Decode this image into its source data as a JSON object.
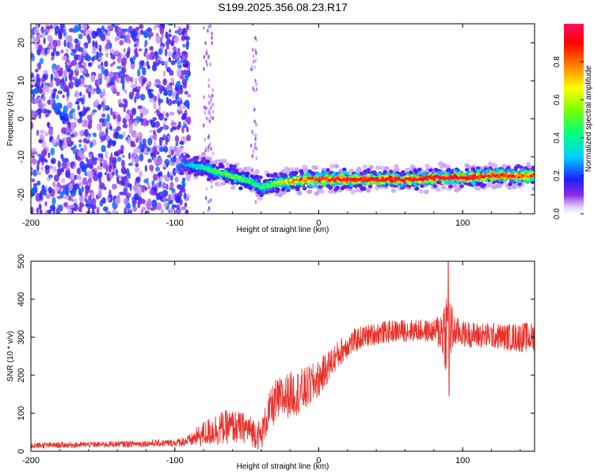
{
  "title": "S199.2025.356.08.23.R17",
  "colors": {
    "snr_line": "#e8302a",
    "scatter_low": "#7b00ff",
    "signal_core": "#ff2200",
    "frame": "#000000"
  },
  "chart_data": [
    {
      "type": "heatmap",
      "name": "spectrogram",
      "xlabel": "Height of straight line (km)",
      "ylabel": "Frequency (Hz)",
      "xlim": [
        -200,
        150
      ],
      "ylim": [
        -25,
        25
      ],
      "xticks": [
        -200,
        -100,
        0,
        100
      ],
      "xtick_labels": [
        "-200",
        "-100",
        "0",
        "100"
      ],
      "yticks": [
        -20,
        -10,
        0,
        10,
        20
      ],
      "ytick_labels": [
        "-20",
        "-10",
        "0",
        "10",
        "20"
      ],
      "colorbar": {
        "label": "Normalized spectral amplitude",
        "range": [
          0,
          1
        ],
        "ticks": [
          0.0,
          0.2,
          0.4,
          0.6,
          0.8
        ],
        "tick_labels": [
          "0.0",
          "0.2",
          "0.4",
          "0.6",
          "0.8"
        ]
      },
      "noise_region": {
        "x_from": -200,
        "x_to": -90,
        "y_from": -25,
        "y_to": 25,
        "amplitude_range": [
          0.05,
          0.25
        ]
      },
      "sparse_columns_x": [
        -78,
        -75,
        -45
      ],
      "signal_track": [
        {
          "x": -95,
          "y": -12,
          "amp": 0.25
        },
        {
          "x": -85,
          "y": -12.5,
          "amp": 0.35
        },
        {
          "x": -75,
          "y": -13.5,
          "amp": 0.45
        },
        {
          "x": -65,
          "y": -14.5,
          "amp": 0.5
        },
        {
          "x": -55,
          "y": -15.5,
          "amp": 0.5
        },
        {
          "x": -45,
          "y": -17,
          "amp": 0.45
        },
        {
          "x": -40,
          "y": -18,
          "amp": 0.4
        },
        {
          "x": -30,
          "y": -17,
          "amp": 0.55
        },
        {
          "x": -20,
          "y": -16.5,
          "amp": 0.7
        },
        {
          "x": -10,
          "y": -16,
          "amp": 0.8
        },
        {
          "x": 0,
          "y": -16,
          "amp": 0.9
        },
        {
          "x": 20,
          "y": -16,
          "amp": 0.95
        },
        {
          "x": 40,
          "y": -16,
          "amp": 1.0
        },
        {
          "x": 60,
          "y": -16,
          "amp": 0.95
        },
        {
          "x": 80,
          "y": -15.5,
          "amp": 1.0
        },
        {
          "x": 100,
          "y": -15.5,
          "amp": 0.95
        },
        {
          "x": 120,
          "y": -15,
          "amp": 0.9
        },
        {
          "x": 140,
          "y": -15,
          "amp": 0.85
        },
        {
          "x": 150,
          "y": -15,
          "amp": 0.8
        }
      ]
    },
    {
      "type": "line",
      "name": "snr",
      "xlabel": "Height of straight line (km)",
      "ylabel": "SNR (10 * v/v)",
      "xlim": [
        -200,
        150
      ],
      "ylim": [
        0,
        500
      ],
      "xticks": [
        -200,
        -100,
        0,
        100
      ],
      "xtick_labels": [
        "-200",
        "-100",
        "0",
        "100"
      ],
      "yticks": [
        0,
        100,
        200,
        300,
        400,
        500
      ],
      "ytick_labels": [
        "0",
        "100",
        "200",
        "300",
        "400",
        "500"
      ],
      "series": [
        {
          "name": "SNR",
          "x": [
            -200,
            -150,
            -100,
            -90,
            -80,
            -70,
            -60,
            -50,
            -40,
            -35,
            -30,
            -20,
            -10,
            0,
            10,
            20,
            30,
            40,
            50,
            60,
            70,
            80,
            85,
            88,
            90,
            92,
            95,
            100,
            110,
            120,
            130,
            140,
            150
          ],
          "mean": [
            15,
            18,
            22,
            28,
            45,
            60,
            65,
            60,
            40,
            100,
            130,
            150,
            160,
            190,
            240,
            280,
            300,
            310,
            315,
            318,
            318,
            315,
            318,
            320,
            320,
            315,
            315,
            310,
            305,
            305,
            300,
            300,
            300
          ],
          "spread": [
            8,
            8,
            10,
            15,
            35,
            45,
            45,
            40,
            40,
            50,
            60,
            60,
            60,
            50,
            40,
            35,
            30,
            30,
            30,
            30,
            30,
            30,
            60,
            110,
            120,
            80,
            40,
            35,
            35,
            35,
            35,
            40,
            40
          ],
          "max": 498,
          "min_dip": 145
        }
      ]
    }
  ]
}
